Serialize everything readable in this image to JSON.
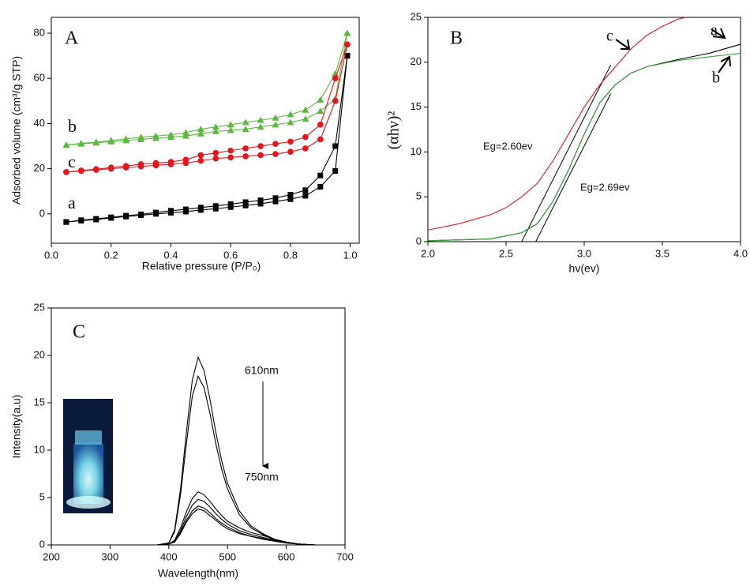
{
  "chart_data": [
    {
      "type": "line",
      "panel_label": "A",
      "xlabel": "Relative pressure  (P/P₀)",
      "ylabel": "Adsorbed volume (cm³/g STP)",
      "xlim": [
        0,
        1.03
      ],
      "ylim": [
        -13,
        87
      ],
      "xticks": [
        {
          "value": 0,
          "label": "0.0"
        },
        {
          "value": 0.2,
          "label": "0.2"
        },
        {
          "value": 0.4,
          "label": "0.4"
        },
        {
          "value": 0.6,
          "label": "0.6"
        },
        {
          "value": 0.8,
          "label": "0.8"
        },
        {
          "value": 1,
          "label": "1.0"
        }
      ],
      "yticks": [
        0,
        20,
        40,
        60,
        80
      ],
      "x": [
        0.05,
        0.1,
        0.15,
        0.2,
        0.25,
        0.3,
        0.35,
        0.4,
        0.45,
        0.5,
        0.55,
        0.6,
        0.65,
        0.7,
        0.75,
        0.8,
        0.85,
        0.9,
        0.95,
        0.99
      ],
      "series": [
        {
          "name": "a",
          "color": "#000000",
          "marker": "square",
          "adsorption": [
            -3.6,
            -3,
            -2.5,
            -1.8,
            -1.2,
            -0.6,
            0,
            0.5,
            1,
            1.7,
            2.3,
            3,
            3.7,
            4.5,
            5.5,
            6.5,
            8,
            12,
            19,
            70
          ],
          "desorption": [
            -3.6,
            -2.8,
            -2.2,
            -1.5,
            -0.8,
            -0.2,
            0.6,
            1.4,
            2,
            2.8,
            3.5,
            4.3,
            5.2,
            6,
            7,
            8.5,
            10.5,
            17,
            30,
            70
          ]
        },
        {
          "name": "b",
          "color": "#5cb840",
          "marker": "triangle",
          "adsorption": [
            30.5,
            31,
            31.5,
            32,
            32.5,
            33,
            33.5,
            34,
            34.5,
            35.5,
            36.5,
            37,
            37.5,
            38.5,
            39.5,
            40.5,
            42,
            45.5,
            51,
            80
          ],
          "desorption": [
            30.5,
            31.2,
            31.8,
            32.5,
            33.2,
            34,
            34.5,
            35,
            36,
            37.5,
            38.5,
            39.5,
            40.5,
            41.5,
            42.5,
            44,
            46,
            50.5,
            62,
            80
          ]
        },
        {
          "name": "c",
          "color": "#e8141c",
          "marker": "circle",
          "adsorption": [
            18.5,
            19,
            19.5,
            20,
            20.5,
            21,
            21.5,
            22,
            22.5,
            23.5,
            24.5,
            25,
            25.5,
            26,
            26.5,
            27.5,
            29,
            33,
            50,
            75
          ],
          "desorption": [
            18.5,
            19.2,
            19.8,
            20.5,
            21.2,
            22,
            22.5,
            23,
            24,
            26,
            27,
            28,
            29,
            30,
            31,
            32,
            34,
            39.5,
            60,
            75
          ]
        }
      ]
    },
    {
      "type": "line",
      "panel_label": "B",
      "xlabel": "hv(ev)",
      "ylabel": "(αhν)²",
      "xlim": [
        2,
        4
      ],
      "ylim": [
        0,
        25
      ],
      "xticks": [
        {
          "value": 2,
          "label": "2.0"
        },
        {
          "value": 2.5,
          "label": "2.5"
        },
        {
          "value": 3,
          "label": "3.0"
        },
        {
          "value": 3.5,
          "label": "3.5"
        },
        {
          "value": 4,
          "label": "4.0"
        }
      ],
      "yticks": [
        0,
        5,
        10,
        15,
        20,
        25
      ],
      "series": [
        {
          "name": "a",
          "color": "#000000",
          "x": [
            2.0,
            2.4,
            2.6,
            2.7,
            2.8,
            2.9,
            3.0,
            3.1,
            3.2,
            3.3,
            3.4,
            3.6,
            3.8,
            4.0
          ],
          "values": [
            0.1,
            0.3,
            1,
            2,
            4.5,
            8,
            12,
            15.5,
            17.5,
            18.8,
            19.5,
            20.3,
            21,
            22
          ]
        },
        {
          "name": "b",
          "color": "#3aa53a",
          "x": [
            2.0,
            2.4,
            2.6,
            2.7,
            2.8,
            2.9,
            3.0,
            3.1,
            3.2,
            3.3,
            3.4,
            3.6,
            3.8,
            4.0
          ],
          "values": [
            0.1,
            0.3,
            1,
            2,
            4.5,
            8,
            12,
            15.5,
            17.5,
            18.8,
            19.5,
            20.2,
            20.6,
            21
          ]
        },
        {
          "name": "c",
          "color": "#e8141c",
          "x": [
            2.0,
            2.2,
            2.4,
            2.5,
            2.6,
            2.7,
            2.8,
            2.9,
            3.0,
            3.1,
            3.2,
            3.3,
            3.4,
            3.5,
            3.6,
            3.65
          ],
          "values": [
            1.3,
            2,
            3,
            3.8,
            5,
            6.5,
            9,
            12,
            15,
            17.5,
            19.5,
            21.5,
            23,
            24,
            24.8,
            25
          ]
        }
      ],
      "tangents": [
        {
          "color": "#000000",
          "x": [
            2.6,
            3.17
          ],
          "values": [
            0,
            19.7
          ]
        },
        {
          "color": "#000000",
          "x": [
            2.69,
            3.17
          ],
          "values": [
            0,
            16.5
          ]
        }
      ],
      "annotations": [
        "Eg=2.60ev",
        "Eg=2.69ev"
      ]
    },
    {
      "type": "line",
      "panel_label": "C",
      "xlabel": "Wavelength(nm)",
      "ylabel": "Intensity(a.u)",
      "xlim": [
        200,
        700
      ],
      "ylim": [
        0,
        25
      ],
      "xticks": [
        200,
        300,
        400,
        500,
        600,
        700
      ],
      "yticks": [
        0,
        5,
        10,
        15,
        20,
        25
      ],
      "x": [
        200,
        300,
        380,
        400,
        410,
        420,
        430,
        440,
        450,
        460,
        470,
        480,
        490,
        500,
        520,
        540,
        560,
        580,
        600,
        620,
        650,
        700
      ],
      "series": [
        {
          "color": "#000000",
          "values": [
            0,
            0,
            0,
            0.2,
            1.6,
            5.9,
            11.9,
            17.4,
            19.8,
            18.4,
            15.4,
            11.9,
            8.9,
            6.5,
            3.6,
            2,
            1.2,
            0.6,
            0.3,
            0.1,
            0,
            0
          ]
        },
        {
          "color": "#000000",
          "values": [
            0,
            0,
            0,
            0.2,
            1.4,
            5.3,
            10.7,
            15.7,
            17.8,
            16.6,
            13.9,
            10.7,
            8,
            5.9,
            3.2,
            1.8,
            1.1,
            0.5,
            0.3,
            0.1,
            0,
            0
          ]
        },
        {
          "color": "#000000",
          "values": [
            0,
            0,
            0,
            0.1,
            0.5,
            1.8,
            3.5,
            4.9,
            5.6,
            5.3,
            4.6,
            3.8,
            3.1,
            2.5,
            1.8,
            1.3,
            1,
            0.6,
            0.3,
            0.1,
            0,
            0
          ]
        },
        {
          "color": "#000000",
          "values": [
            0,
            0,
            0,
            0.1,
            0.4,
            1.5,
            3,
            4.2,
            4.8,
            4.6,
            4,
            3.3,
            2.7,
            2.2,
            1.5,
            1.1,
            0.8,
            0.5,
            0.3,
            0.1,
            0,
            0
          ]
        },
        {
          "color": "#000000",
          "values": [
            0,
            0,
            0,
            0.1,
            0.4,
            1.3,
            2.6,
            3.6,
            4.1,
            3.9,
            3.4,
            2.8,
            2.3,
            1.9,
            1.3,
            0.9,
            0.7,
            0.4,
            0.2,
            0.1,
            0,
            0
          ]
        },
        {
          "color": "#000000",
          "values": [
            0,
            0,
            0,
            0.1,
            0.3,
            1.2,
            2.4,
            3.3,
            3.8,
            3.6,
            3.1,
            2.6,
            2.1,
            1.7,
            1.2,
            0.9,
            0.6,
            0.4,
            0.2,
            0.1,
            0,
            0
          ]
        }
      ],
      "annotations": [
        "610nm",
        "750nm"
      ]
    }
  ]
}
